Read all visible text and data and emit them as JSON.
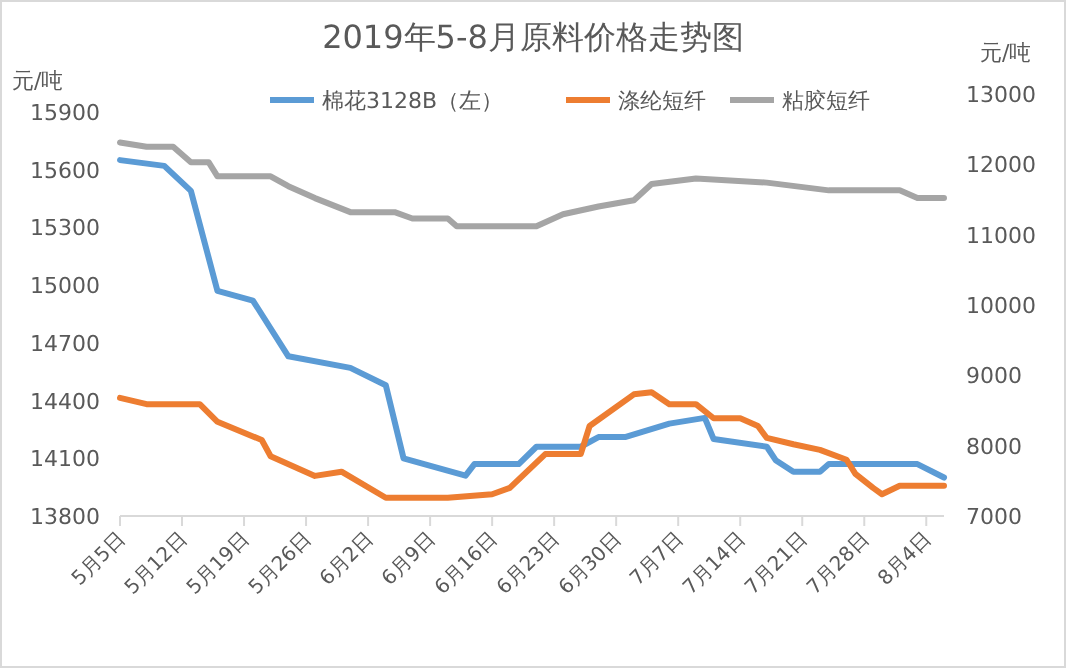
{
  "chart_data": {
    "type": "line",
    "title": "2019年5-8月原料价格走势图",
    "ylabel": "元/吨",
    "y2label": "元/吨",
    "legend": "top",
    "grid": false,
    "line_style": "solid",
    "marker": "none",
    "xlim": [
      "--05-05",
      "--08-06"
    ],
    "xticks": [
      {
        "value": "--05-05",
        "label": "5月5日"
      },
      {
        "value": "--05-12",
        "label": "5月12日"
      },
      {
        "value": "--05-19",
        "label": "5月19日"
      },
      {
        "value": "--05-26",
        "label": "5月26日"
      },
      {
        "value": "--06-02",
        "label": "6月2日"
      },
      {
        "value": "--06-09",
        "label": "6月9日"
      },
      {
        "value": "--06-16",
        "label": "6月16日"
      },
      {
        "value": "--06-23",
        "label": "6月23日"
      },
      {
        "value": "--06-30",
        "label": "6月30日"
      },
      {
        "value": "--07-07",
        "label": "7月7日"
      },
      {
        "value": "--07-14",
        "label": "7月14日"
      },
      {
        "value": "--07-21",
        "label": "7月21日"
      },
      {
        "value": "--07-28",
        "label": "7月28日"
      },
      {
        "value": "--08-04",
        "label": "8月4日"
      }
    ],
    "ylim": [
      13800,
      15900
    ],
    "yticks": [
      13800,
      14100,
      14400,
      14700,
      15000,
      15300,
      15600,
      15900
    ],
    "y2lim": [
      7000,
      13000
    ],
    "y2ticks": [
      7000,
      8000,
      9000,
      10000,
      11000,
      12000,
      13000
    ],
    "series": [
      {
        "name": "棉花3128B（左）",
        "color": "#5b9bd5",
        "x": [
          "--05-05",
          "--05-10",
          "--05-13",
          "--05-16",
          "--05-20",
          "--05-24",
          "--05-31",
          "--06-04",
          "--06-06",
          "--06-13",
          "--06-14",
          "--06-19",
          "--06-21",
          "--06-26",
          "--06-28",
          "--07-01",
          "--07-06",
          "--07-10",
          "--07-11",
          "--07-17",
          "--07-18",
          "--07-20",
          "--07-23",
          "--07-24",
          "--08-03",
          "--08-06"
        ],
        "values": [
          15650,
          15620,
          15490,
          14970,
          14920,
          14630,
          14570,
          14480,
          14100,
          14010,
          14070,
          14070,
          14160,
          14160,
          14210,
          14210,
          14280,
          14310,
          14200,
          14160,
          14090,
          14030,
          14030,
          14070,
          14070,
          14000
        ]
      },
      {
        "name": "涤纶短纤",
        "color": "#ed7d31",
        "axis": "y2",
        "x": [
          "--05-05",
          "--05-08",
          "--05-14",
          "--05-16",
          "--05-21",
          "--05-22",
          "--05-27",
          "--05-30",
          "--06-04",
          "--06-11",
          "--06-16",
          "--06-18",
          "--06-22",
          "--06-26",
          "--06-27",
          "--07-02",
          "--07-04",
          "--07-06",
          "--07-09",
          "--07-11",
          "--07-14",
          "--07-16",
          "--07-17",
          "--07-20",
          "--07-23",
          "--07-26",
          "--07-27",
          "--07-29",
          "--07-30",
          "--08-01",
          "--08-06"
        ],
        "values": [
          8680,
          8590,
          8590,
          8340,
          8080,
          7850,
          7570,
          7630,
          7260,
          7260,
          7310,
          7400,
          7880,
          7880,
          8280,
          8730,
          8760,
          8590,
          8590,
          8390,
          8390,
          8280,
          8110,
          8020,
          7940,
          7800,
          7600,
          7400,
          7310,
          7430,
          7430
        ]
      },
      {
        "name": "粘胶短纤",
        "color": "#a5a5a5",
        "axis": "y2",
        "x": [
          "--05-05",
          "--05-08",
          "--05-11",
          "--05-13",
          "--05-15",
          "--05-16",
          "--05-22",
          "--05-24",
          "--05-27",
          "--05-31",
          "--06-05",
          "--06-07",
          "--06-11",
          "--06-12",
          "--06-21",
          "--06-24",
          "--06-28",
          "--07-02",
          "--07-04",
          "--07-09",
          "--07-17",
          "--07-24",
          "--08-01",
          "--08-03",
          "--08-06"
        ],
        "values": [
          12310,
          12250,
          12250,
          12030,
          12030,
          11830,
          11830,
          11690,
          11520,
          11320,
          11320,
          11230,
          11230,
          11120,
          11120,
          11290,
          11400,
          11490,
          11720,
          11800,
          11740,
          11630,
          11630,
          11520,
          11520
        ]
      }
    ]
  }
}
